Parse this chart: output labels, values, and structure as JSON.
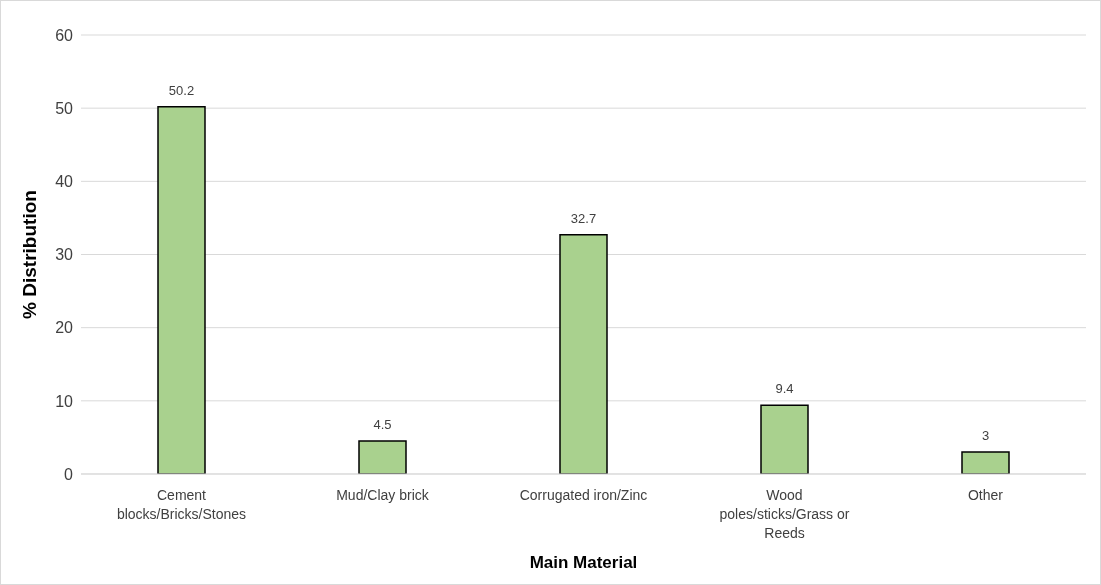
{
  "chart_data": {
    "type": "bar",
    "xlabel": "Main Material",
    "ylabel": "% Distribution",
    "categories": [
      "Cement blocks/Bricks/Stones",
      "Mud/Clay brick",
      "Corrugated iron/Zinc",
      "Wood poles/sticks/Grass or Reeds",
      "Other"
    ],
    "values": [
      50.2,
      4.5,
      32.7,
      9.4,
      3
    ],
    "color": "#a9d18e",
    "ylim": [
      0,
      60
    ],
    "yticks": [
      0,
      10,
      20,
      30,
      40,
      50,
      60
    ],
    "grid": "y",
    "data_labels": true
  }
}
